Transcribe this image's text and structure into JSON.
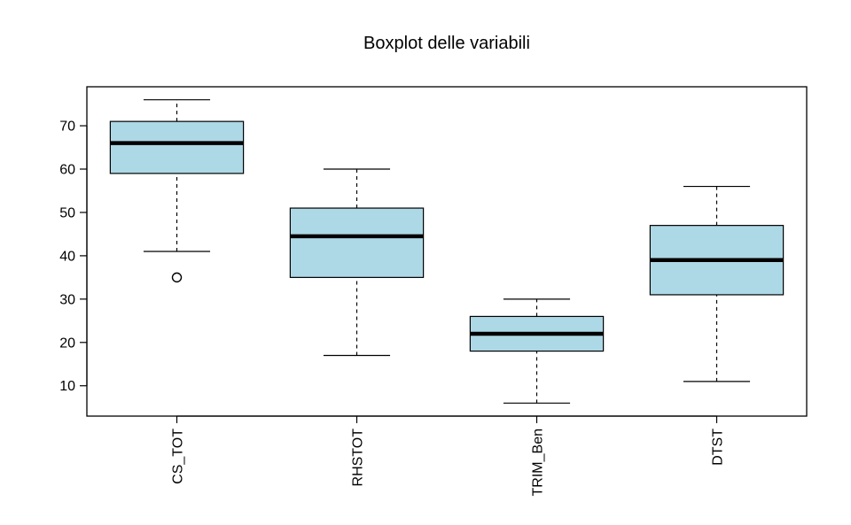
{
  "chart_data": {
    "type": "boxplot",
    "title": "Boxplot delle variabili",
    "xlabel": "",
    "ylabel": "",
    "ylim": [
      3,
      79
    ],
    "yticks": [
      10,
      20,
      30,
      40,
      50,
      60,
      70
    ],
    "grid": false,
    "box_color": "#add8e6",
    "categories": [
      "CS_TOT",
      "RHSTOT",
      "TRIM_Ben",
      "DTST"
    ],
    "boxes": [
      {
        "name": "CS_TOT",
        "whisker_low": 41,
        "q1": 59,
        "median": 66,
        "q3": 71,
        "whisker_high": 76,
        "outliers": [
          35
        ]
      },
      {
        "name": "RHSTOT",
        "whisker_low": 17,
        "q1": 35,
        "median": 44.5,
        "q3": 51,
        "whisker_high": 60,
        "outliers": []
      },
      {
        "name": "TRIM_Ben",
        "whisker_low": 6,
        "q1": 18,
        "median": 22,
        "q3": 26,
        "whisker_high": 30,
        "outliers": []
      },
      {
        "name": "DTST",
        "whisker_low": 11,
        "q1": 31,
        "median": 39,
        "q3": 47,
        "whisker_high": 56,
        "outliers": []
      }
    ]
  }
}
